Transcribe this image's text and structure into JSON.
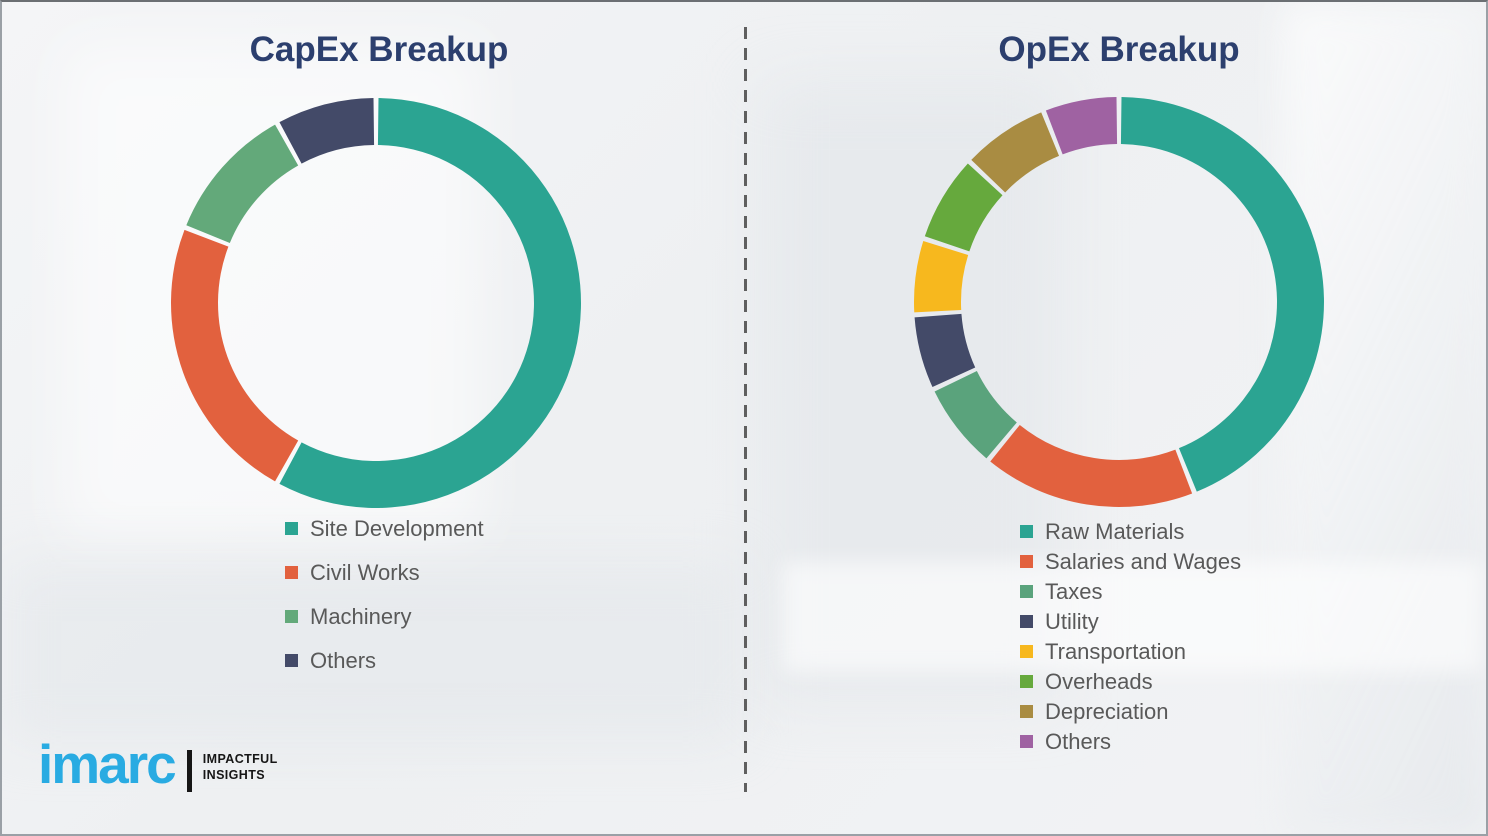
{
  "page": {
    "background_color": "#f0f1f3",
    "border_color": "#9aa0a6",
    "title_color": "#2c3f6e",
    "legend_text_color": "#595959",
    "divider_color": "#5f5f5f",
    "divider_style": "vertical-dashed"
  },
  "chart_data": [
    {
      "type": "pie",
      "variant": "donut",
      "title": "CapEx Breakup",
      "labels": [
        "Site Development",
        "Civil Works",
        "Machinery",
        "Others"
      ],
      "values": [
        58,
        23,
        11,
        8
      ],
      "colors": [
        "#2ba492",
        "#e2613e",
        "#63a97a",
        "#434a68"
      ],
      "start_angle_deg": 0,
      "direction": "clockwise",
      "legend_position": "bottom-left",
      "data_labels_shown": false
    },
    {
      "type": "pie",
      "variant": "donut",
      "title": "OpEx Breakup",
      "labels": [
        "Raw Materials",
        "Salaries and Wages",
        "Taxes",
        "Utility",
        "Transportation",
        "Overheads",
        "Depreciation",
        "Others"
      ],
      "values": [
        44,
        17,
        7,
        6,
        6,
        7,
        7,
        6
      ],
      "colors": [
        "#2ba492",
        "#e2613e",
        "#5aa37c",
        "#434a68",
        "#f7b81e",
        "#66a93d",
        "#a98c42",
        "#9f62a2"
      ],
      "start_angle_deg": 0,
      "direction": "clockwise",
      "legend_position": "bottom-left",
      "data_labels_shown": false
    }
  ],
  "logo": {
    "brand": "imarc",
    "brand_color": "#29abe2",
    "tagline_line1": "IMPACTFUL",
    "tagline_line2": "INSIGHTS"
  }
}
